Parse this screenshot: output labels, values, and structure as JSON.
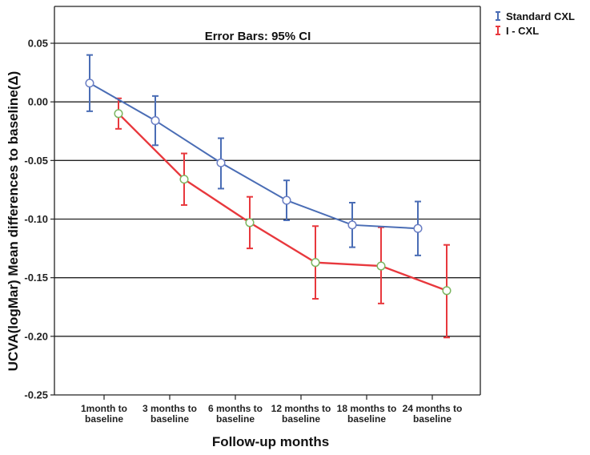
{
  "chart_data": {
    "type": "line",
    "title": "",
    "annotation": "Error Bars: 95% CI",
    "xlabel": "Follow-up months",
    "ylabel": "UCVA(logMar) Mean differences to baseline(Δ)",
    "categories": [
      [
        "1month to",
        "baseline"
      ],
      [
        "3 months to",
        "baseline"
      ],
      [
        "6 months to",
        "baseline"
      ],
      [
        "12 months to",
        "baseline"
      ],
      [
        "18 months to",
        "baseline"
      ],
      [
        "24 months to",
        "baseline"
      ]
    ],
    "ylim": [
      -0.25,
      0.07
    ],
    "yticks": [
      0.05,
      0.0,
      -0.05,
      -0.1,
      -0.15,
      -0.2,
      -0.25
    ],
    "ytick_labels": [
      "0.05",
      "0.00",
      "-0.05",
      "-0.10",
      "-0.15",
      "-0.20",
      "-0.25"
    ],
    "legend_position": "top-right",
    "series": [
      {
        "name": "Standard CXL",
        "color": "#4a6db5",
        "marker_color": "#6b7fc4",
        "values": [
          0.016,
          -0.016,
          -0.052,
          -0.084,
          -0.105,
          -0.108
        ],
        "ci_low": [
          -0.008,
          -0.037,
          -0.074,
          -0.101,
          -0.124,
          -0.131
        ],
        "ci_high": [
          0.04,
          0.005,
          -0.031,
          -0.067,
          -0.086,
          -0.085
        ]
      },
      {
        "name": "I - CXL",
        "color": "#e8383d",
        "marker_color": "#7bb661",
        "values": [
          -0.01,
          -0.066,
          -0.103,
          -0.137,
          -0.14,
          -0.161
        ],
        "ci_low": [
          -0.023,
          -0.088,
          -0.125,
          -0.168,
          -0.172,
          -0.201
        ],
        "ci_high": [
          0.003,
          -0.044,
          -0.081,
          -0.106,
          -0.107,
          -0.122
        ]
      }
    ]
  }
}
